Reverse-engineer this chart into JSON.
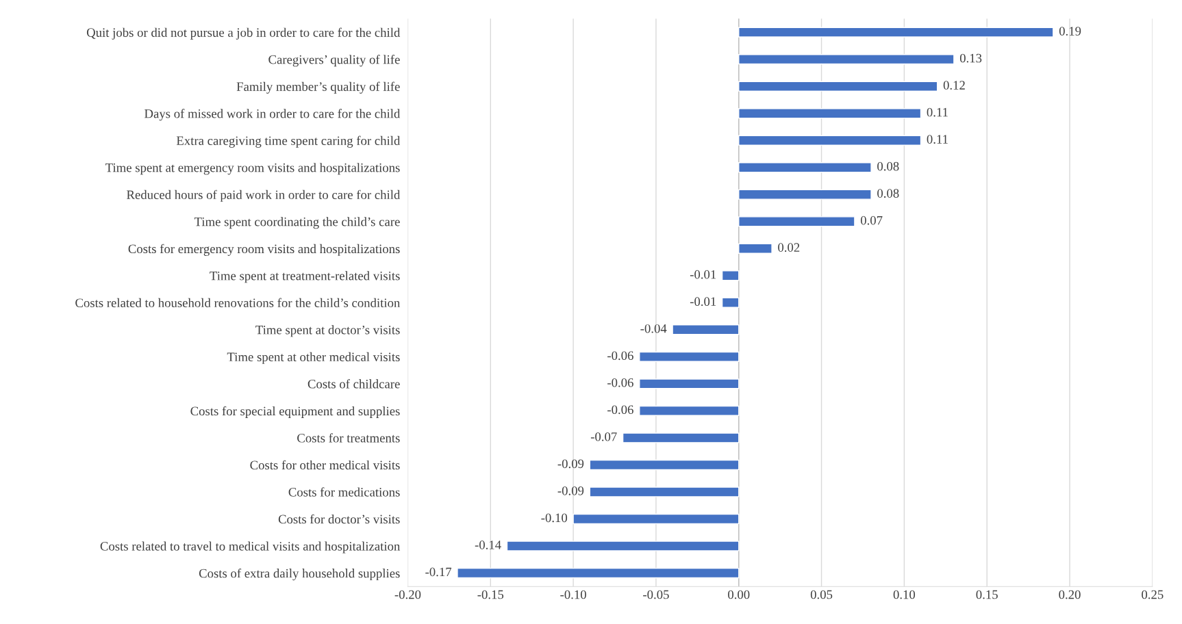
{
  "chart_data": {
    "type": "bar",
    "orientation": "horizontal",
    "categories": [
      "Quit jobs or did not pursue a job in order to care for the child",
      "Caregivers’ quality of life",
      "Family member’s quality of life",
      "Days of missed work in order to care for the child",
      "Extra caregiving time spent caring for child",
      "Time spent at emergency room visits and hospitalizations",
      "Reduced hours of paid work in order to care for child",
      "Time spent coordinating the child’s care",
      "Costs for emergency room visits and hospitalizations",
      "Time spent at treatment-related visits",
      "Costs related to household renovations for the child’s condition",
      "Time spent at doctor’s visits",
      "Time spent at other medical visits",
      "Costs of childcare",
      "Costs for special equipment and supplies",
      "Costs for treatments",
      "Costs for other medical visits",
      "Costs for medications",
      "Costs for doctor’s visits",
      "Costs related to travel to medical visits and hospitalization",
      "Costs of extra daily household supplies"
    ],
    "values": [
      0.19,
      0.13,
      0.12,
      0.11,
      0.11,
      0.08,
      0.08,
      0.07,
      0.02,
      -0.01,
      -0.01,
      -0.04,
      -0.06,
      -0.06,
      -0.06,
      -0.07,
      -0.09,
      -0.09,
      -0.1,
      -0.14,
      -0.17
    ],
    "value_labels": [
      "0.19",
      "0.13",
      "0.12",
      "0.11",
      "0.11",
      "0.08",
      "0.08",
      "0.07",
      "0.02",
      "-0.01",
      "-0.01",
      "-0.04",
      "-0.06",
      "-0.06",
      "-0.06",
      "-0.07",
      "-0.09",
      "-0.09",
      "-0.10",
      "-0.14",
      "-0.17"
    ],
    "color": "#4472c4",
    "xlim": [
      -0.2,
      0.25
    ],
    "xticks": [
      {
        "value": -0.2,
        "label": "-0.20"
      },
      {
        "value": -0.15,
        "label": "-0.15"
      },
      {
        "value": -0.1,
        "label": "-0.10"
      },
      {
        "value": -0.05,
        "label": "-0.05"
      },
      {
        "value": 0,
        "label": "0.00"
      },
      {
        "value": 0.05,
        "label": "0.05"
      },
      {
        "value": 0.1,
        "label": "0.10"
      },
      {
        "value": 0.15,
        "label": "0.15"
      },
      {
        "value": 0.2,
        "label": "0.20"
      },
      {
        "value": 0.25,
        "label": "0.25"
      }
    ],
    "grid": "x",
    "legend": false
  }
}
